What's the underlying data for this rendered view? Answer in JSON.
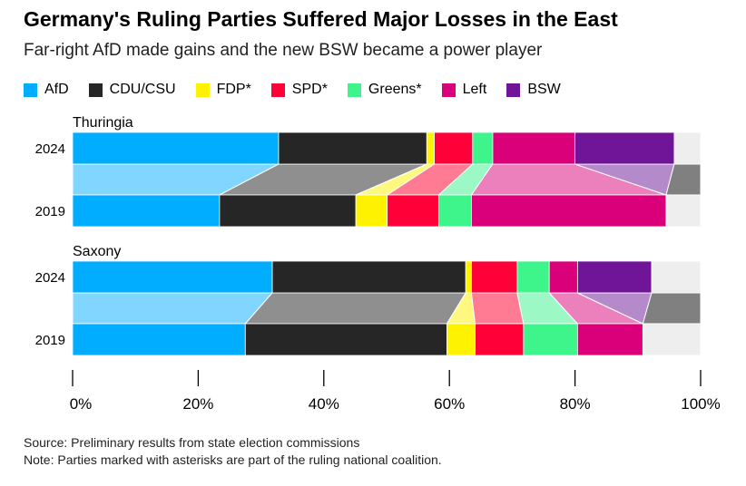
{
  "title": "Germany's Ruling Parties Suffered Major Losses in the East",
  "subtitle": "Far-right AfD made gains and the new BSW became a power player",
  "source": "Source: Preliminary results from state election commissions",
  "note": "Note: Parties marked with asterisks are part of the ruling national coalition.",
  "chart_data": {
    "type": "bar",
    "stacked": true,
    "orientation": "horizontal",
    "xlim": [
      0,
      100
    ],
    "xticks": [
      "0%",
      "20%",
      "40%",
      "60%",
      "80%",
      "100%"
    ],
    "legend_position": "top",
    "series": [
      {
        "name": "AfD",
        "color": "#00adff",
        "light": "#80d6ff"
      },
      {
        "name": "CDU/CSU",
        "color": "#262626",
        "light": "#8f8f8f"
      },
      {
        "name": "FDP*",
        "color": "#fff200",
        "light": "#fff880"
      },
      {
        "name": "SPD*",
        "color": "#ff0038",
        "light": "#ff7b93"
      },
      {
        "name": "Greens*",
        "color": "#3ef58c",
        "light": "#9cf9c5"
      },
      {
        "name": "Left",
        "color": "#d9007a",
        "light": "#ec80bd"
      },
      {
        "name": "BSW",
        "color": "#701597",
        "light": "#b58acb"
      }
    ],
    "other_color": "#eeeeee",
    "other_band_color": "#808080",
    "groups": [
      {
        "name": "Thuringia",
        "rows": [
          {
            "year": "2024",
            "values": [
              32.8,
              23.6,
              1.2,
              6.1,
              3.2,
              13.1,
              15.8
            ]
          },
          {
            "year": "2019",
            "values": [
              23.4,
              21.7,
              5.0,
              8.2,
              5.2,
              31.0,
              0
            ]
          }
        ]
      },
      {
        "name": "Saxony",
        "rows": [
          {
            "year": "2024",
            "values": [
              31.8,
              30.8,
              0.9,
              7.3,
              5.1,
              4.5,
              11.8
            ]
          },
          {
            "year": "2019",
            "values": [
              27.5,
              32.1,
              4.5,
              7.7,
              8.6,
              10.4,
              0
            ]
          }
        ]
      }
    ]
  }
}
